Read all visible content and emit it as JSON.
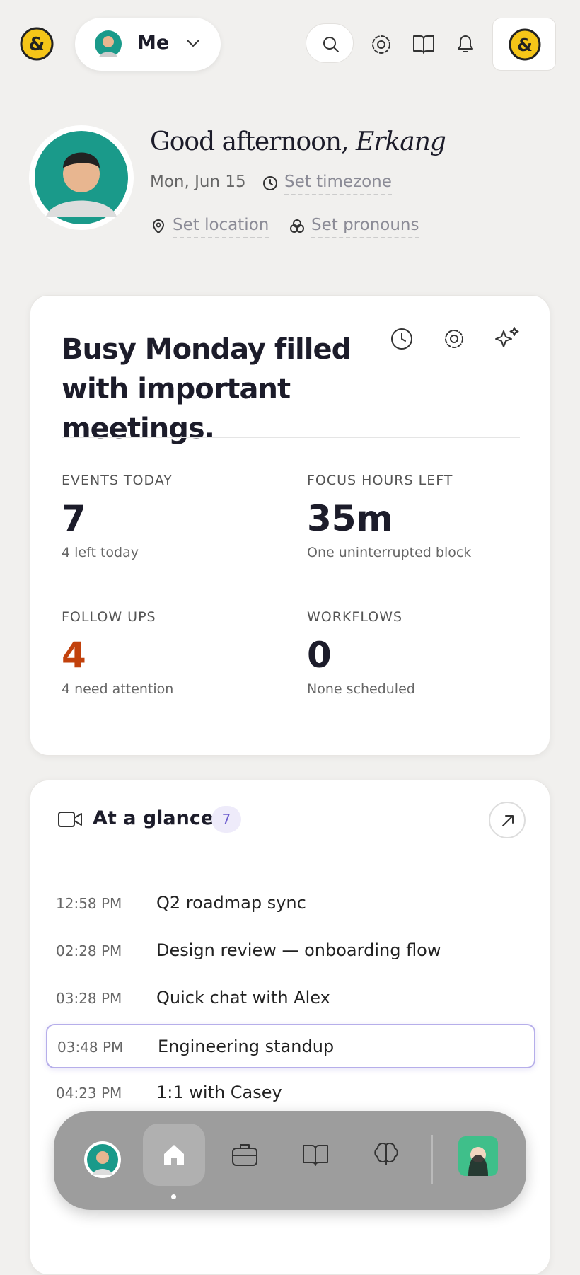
{
  "header": {
    "profile_label": "Me"
  },
  "profile": {
    "greeting": "Good afternoon,",
    "name": "Erkang",
    "date": "Mon, Jun 15",
    "timezone": "Set timezone",
    "location": "Set location",
    "pronouns": "Set pronouns"
  },
  "summary": {
    "title": "Busy Monday filled with important meetings.",
    "stats": [
      {
        "label": "EVENTS TODAY",
        "value": "7",
        "note": "4 left today"
      },
      {
        "label": "FOCUS HOURS LEFT",
        "value": "35m",
        "note": "One uninterrupted block"
      },
      {
        "label": "FOLLOW UPS",
        "value": "4",
        "note": "4 need attention"
      },
      {
        "label": "WORKFLOWS",
        "value": "0",
        "note": "None scheduled"
      }
    ]
  },
  "glance": {
    "title": "At a glance",
    "count": "7",
    "events": [
      {
        "time": "12:58 PM",
        "title": "Q2 roadmap sync"
      },
      {
        "time": "02:28 PM",
        "title": "Design review — onboarding flow"
      },
      {
        "time": "03:28 PM",
        "title": "Quick chat with Alex"
      },
      {
        "time": "03:48 PM",
        "title": "Engineering standup"
      },
      {
        "time": "04:23 PM",
        "title": "1:1 with Casey"
      }
    ]
  }
}
